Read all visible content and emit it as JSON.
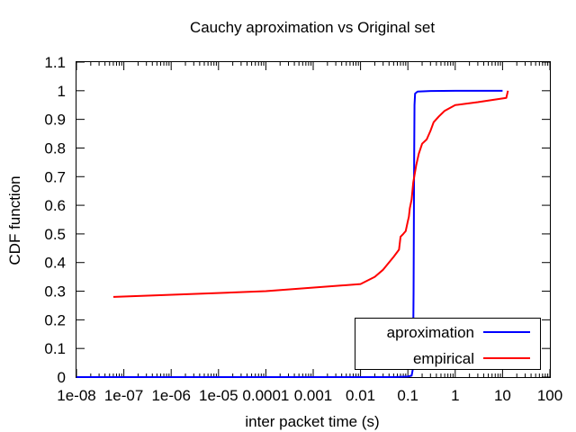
{
  "chart_data": {
    "type": "line",
    "title": "Cauchy aproximation vs Original set",
    "xlabel": "inter packet time (s)",
    "ylabel": "CDF function",
    "x_scale": "log",
    "xlim": [
      1e-08,
      100
    ],
    "ylim": [
      0,
      1.1
    ],
    "x_ticks": [
      {
        "value": 1e-08,
        "label": "1e-08"
      },
      {
        "value": 1e-07,
        "label": "1e-07"
      },
      {
        "value": 1e-06,
        "label": "1e-06"
      },
      {
        "value": 1e-05,
        "label": "1e-05"
      },
      {
        "value": 0.0001,
        "label": "0.0001"
      },
      {
        "value": 0.001,
        "label": "0.001"
      },
      {
        "value": 0.01,
        "label": "0.01"
      },
      {
        "value": 0.1,
        "label": "0.1"
      },
      {
        "value": 1,
        "label": "1"
      },
      {
        "value": 10,
        "label": "10"
      },
      {
        "value": 100,
        "label": "100"
      }
    ],
    "y_ticks": [
      {
        "value": 0,
        "label": "0"
      },
      {
        "value": 0.1,
        "label": "0.1"
      },
      {
        "value": 0.2,
        "label": "0.2"
      },
      {
        "value": 0.3,
        "label": "0.3"
      },
      {
        "value": 0.4,
        "label": "0.4"
      },
      {
        "value": 0.5,
        "label": "0.5"
      },
      {
        "value": 0.6,
        "label": "0.6"
      },
      {
        "value": 0.7,
        "label": "0.7"
      },
      {
        "value": 0.8,
        "label": "0.8"
      },
      {
        "value": 0.9,
        "label": "0.9"
      },
      {
        "value": 1,
        "label": "1"
      },
      {
        "value": 1.1,
        "label": "1.1"
      }
    ],
    "grid": false,
    "legend_position": "bottom-right",
    "series": [
      {
        "name": "aproximation",
        "color": "#0000ff",
        "points": [
          [
            1e-08,
            0
          ],
          [
            0.05,
            0
          ],
          [
            0.1,
            0.002
          ],
          [
            0.12,
            0.005
          ],
          [
            0.128,
            0.03
          ],
          [
            0.132,
            0.3
          ],
          [
            0.135,
            0.7
          ],
          [
            0.138,
            0.95
          ],
          [
            0.142,
            0.99
          ],
          [
            0.16,
            0.997
          ],
          [
            0.3,
            0.999
          ],
          [
            1,
            1.0
          ],
          [
            10,
            1.0
          ]
        ]
      },
      {
        "name": "empirical",
        "color": "#ff0000",
        "points": [
          [
            6e-08,
            0.28
          ],
          [
            0.0001,
            0.3
          ],
          [
            0.01,
            0.325
          ],
          [
            0.02,
            0.35
          ],
          [
            0.03,
            0.375
          ],
          [
            0.05,
            0.42
          ],
          [
            0.065,
            0.445
          ],
          [
            0.07,
            0.49
          ],
          [
            0.08,
            0.5
          ],
          [
            0.09,
            0.51
          ],
          [
            0.1,
            0.545
          ],
          [
            0.105,
            0.56
          ],
          [
            0.11,
            0.59
          ],
          [
            0.12,
            0.62
          ],
          [
            0.13,
            0.68
          ],
          [
            0.15,
            0.74
          ],
          [
            0.17,
            0.78
          ],
          [
            0.2,
            0.815
          ],
          [
            0.25,
            0.83
          ],
          [
            0.3,
            0.86
          ],
          [
            0.35,
            0.89
          ],
          [
            0.45,
            0.91
          ],
          [
            0.6,
            0.93
          ],
          [
            1,
            0.95
          ],
          [
            3,
            0.96
          ],
          [
            12,
            0.975
          ],
          [
            13,
            1.0
          ]
        ]
      }
    ]
  }
}
